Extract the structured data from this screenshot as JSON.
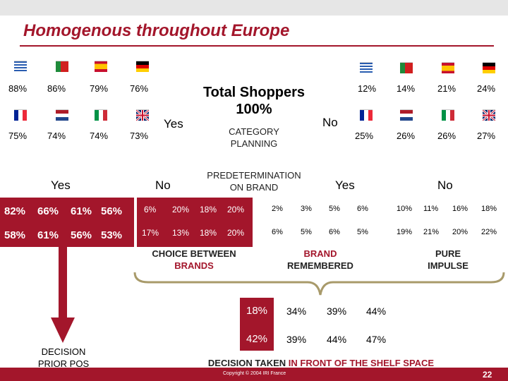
{
  "title": "Homogenous throughout Europe",
  "center": {
    "title_line1": "Total Shoppers",
    "title_line2": "100%",
    "yes": "Yes",
    "no": "No",
    "cat_line1": "CATEGORY",
    "cat_line2": "PLANNING",
    "pred_line1": "PREDETERMINATION",
    "pred_line2": "ON BRAND"
  },
  "colors": {
    "brand_red": "#a3162b"
  },
  "flags": {
    "top_left": [
      "greece-flag",
      "portugal-flag",
      "spain-flag",
      "germany-flag"
    ],
    "bottom_left": [
      "france-flag",
      "netherlands-flag",
      "italy-flag",
      "uk-flag"
    ]
  },
  "left_top": {
    "row1": [
      "88%",
      "86%",
      "79%",
      "76%"
    ],
    "row2": [
      "75%",
      "74%",
      "74%",
      "73%"
    ]
  },
  "right_top": {
    "row1": [
      "12%",
      "14%",
      "21%",
      "24%"
    ],
    "row2": [
      "25%",
      "26%",
      "26%",
      "27%"
    ]
  },
  "mid_labels": {
    "yes_left": "Yes",
    "no_left": "No",
    "yes_right": "Yes",
    "no_right": "No"
  },
  "grid": {
    "row1": {
      "a": [
        "82%",
        "66%",
        "61%",
        "56%"
      ],
      "b": [
        "6%",
        "20%",
        "18%",
        "20%"
      ],
      "c": [
        "2%",
        "3%",
        "5%",
        "6%"
      ],
      "d": [
        "10%",
        "11%",
        "16%",
        "18%"
      ]
    },
    "row2": {
      "a": [
        "58%",
        "61%",
        "56%",
        "53%"
      ],
      "b": [
        "17%",
        "13%",
        "18%",
        "20%"
      ],
      "c": [
        "6%",
        "5%",
        "6%",
        "5%"
      ],
      "d": [
        "19%",
        "21%",
        "20%",
        "22%"
      ]
    }
  },
  "lower_labels": {
    "choice_line1": "CHOICE BETWEEN",
    "choice_line2": "BRANDS",
    "brand_line1": "BRAND",
    "brand_line2": "REMEMBERED",
    "pure_line1": "PURE",
    "pure_line2": "IMPULSE"
  },
  "bottom": {
    "row1": [
      "18%",
      "34%",
      "39%",
      "44%"
    ],
    "row2": [
      "42%",
      "39%",
      "44%",
      "47%"
    ]
  },
  "decision_prior": {
    "line1": "DECISION",
    "line2": "PRIOR POS"
  },
  "decision_shelf": {
    "part1": "DECISION TAKEN ",
    "part2": "IN FRONT OF THE SHELF SPACE"
  },
  "footer": {
    "copyright": "Copyright © 2004 IRI France",
    "page": "22"
  }
}
